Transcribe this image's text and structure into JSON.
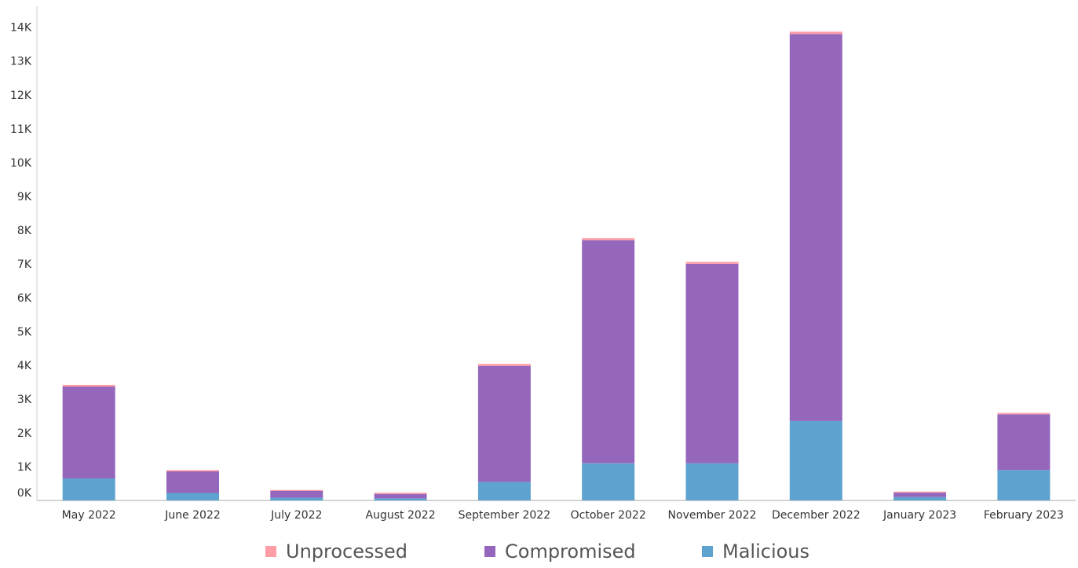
{
  "chart_data": {
    "type": "bar",
    "stacked": true,
    "categories": [
      "May 2022",
      "June 2022",
      "July 2022",
      "August 2022",
      "September 2022",
      "October 2022",
      "November 2022",
      "December 2022",
      "January 2023",
      "February 2023"
    ],
    "yticks": [
      "0K",
      "1K",
      "2K",
      "3K",
      "4K",
      "5K",
      "6K",
      "7K",
      "8K",
      "9K",
      "10K",
      "11K",
      "12K",
      "13K",
      "14K"
    ],
    "ylim": [
      0,
      14600
    ],
    "series": [
      {
        "name": "Malicious",
        "color": "#5ea3cf",
        "values": [
          650,
          220,
          80,
          60,
          550,
          1100,
          1100,
          2350,
          100,
          900
        ]
      },
      {
        "name": "Compromised",
        "color": "#9467bd",
        "values": [
          2720,
          640,
          200,
          130,
          3430,
          6600,
          5900,
          11450,
          130,
          1650
        ]
      },
      {
        "name": "Unprocessed",
        "color": "#ff9da7",
        "values": [
          50,
          40,
          30,
          40,
          60,
          60,
          60,
          70,
          30,
          40
        ]
      }
    ],
    "legend": {
      "position": "bottom",
      "items": [
        {
          "label": "Unprocessed",
          "color": "#ff9da7"
        },
        {
          "label": "Compromised",
          "color": "#9467bd"
        },
        {
          "label": "Malicious",
          "color": "#5ea3cf"
        }
      ]
    }
  }
}
